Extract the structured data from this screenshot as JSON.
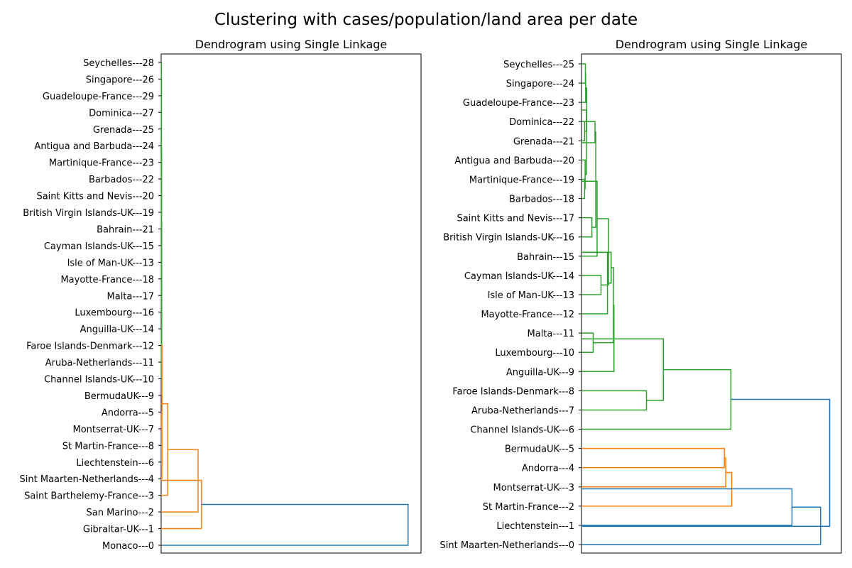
{
  "figure": {
    "suptitle": "Clustering with cases/population/land area per date"
  },
  "chart_data": [
    {
      "type": "dendrogram",
      "title": "Dendrogram using Single Linkage",
      "orientation": "right",
      "xlim": [
        0,
        1
      ],
      "leaves": [
        "Monaco---0",
        "Gibraltar-UK---1",
        "San Marino---2",
        "Saint Barthelemy-France---3",
        "Sint Maarten-Netherlands---4",
        "Liechtenstein---6",
        "St Martin-France---8",
        "Montserrat-UK---7",
        "Andorra---5",
        "BermudaUK---9",
        "Channel Islands-UK---10",
        "Aruba-Netherlands---11",
        "Faroe Islands-Denmark---12",
        "Anguilla-UK---14",
        "Luxembourg---16",
        "Malta---17",
        "Mayotte-France---18",
        "Isle of Man-UK---13",
        "Cayman Islands-UK---15",
        "Bahrain---21",
        "British Virgin Islands-UK---19",
        "Saint Kitts and Nevis---20",
        "Barbados---22",
        "Martinique-France---23",
        "Antigua and Barbuda---24",
        "Grenada---25",
        "Dominica---27",
        "Guadeloupe-France---29",
        "Singapore---26",
        "Seychelles---28"
      ],
      "links": [
        {
          "a": 23,
          "b": 24,
          "height": 0.0003,
          "color": "#2ca02c"
        },
        {
          "a": 24.5,
          "b": 22,
          "height": 0.0004,
          "color": "#2ca02c"
        },
        {
          "a": 23.75,
          "b": 25,
          "height": 0.0005,
          "color": "#2ca02c"
        },
        {
          "a": 24.375,
          "b": 26,
          "height": 0.0006,
          "color": "#2ca02c"
        },
        {
          "a": 25.1875,
          "b": 27,
          "height": 0.0007,
          "color": "#2ca02c"
        },
        {
          "a": 26.09,
          "b": 28,
          "height": 0.0008,
          "color": "#2ca02c"
        },
        {
          "a": 27.05,
          "b": 29,
          "height": 0.0009,
          "color": "#2ca02c"
        },
        {
          "a": 20,
          "b": 21,
          "height": 0.0005,
          "color": "#2ca02c"
        },
        {
          "a": 20.5,
          "b": 19,
          "height": 0.0007,
          "color": "#2ca02c"
        },
        {
          "a": 19.75,
          "b": 28.0,
          "height": 0.0012,
          "color": "#2ca02c"
        },
        {
          "a": 17,
          "b": 18,
          "height": 0.0006,
          "color": "#2ca02c"
        },
        {
          "a": 17.5,
          "b": 16,
          "height": 0.0008,
          "color": "#2ca02c"
        },
        {
          "a": 16.75,
          "b": 15,
          "height": 0.001,
          "color": "#2ca02c"
        },
        {
          "a": 15.875,
          "b": 14,
          "height": 0.0012,
          "color": "#2ca02c"
        },
        {
          "a": 14.9,
          "b": 23.9,
          "height": 0.0015,
          "color": "#2ca02c"
        },
        {
          "a": 12,
          "b": 13,
          "height": 0.001,
          "color": "#2ca02c"
        },
        {
          "a": 12.5,
          "b": 11,
          "height": 0.0012,
          "color": "#2ca02c"
        },
        {
          "a": 11.75,
          "b": 10,
          "height": 0.0014,
          "color": "#2ca02c"
        },
        {
          "a": 10.9,
          "b": 19.4,
          "height": 0.0018,
          "color": "#2ca02c"
        },
        {
          "a": 9,
          "b": 15.1,
          "height": 0.002,
          "color": "#2ca02c"
        },
        {
          "a": 7,
          "b": 8,
          "height": 0.0015,
          "color": "#ff7f0e"
        },
        {
          "a": 7.5,
          "b": 6,
          "height": 0.0018,
          "color": "#ff7f0e"
        },
        {
          "a": 6.75,
          "b": 5,
          "height": 0.002,
          "color": "#ff7f0e"
        },
        {
          "a": 5.9,
          "b": 4,
          "height": 0.0025,
          "color": "#ff7f0e"
        },
        {
          "a": 4.9,
          "b": 12.0,
          "height": 0.003,
          "color": "#ff7f0e"
        },
        {
          "a": 3,
          "b": 8.5,
          "height": 0.025,
          "color": "#ff7f0e"
        },
        {
          "a": 2,
          "b": 5.75,
          "height": 0.142,
          "color": "#ff7f0e"
        },
        {
          "a": 1,
          "b": 3.9,
          "height": 0.155,
          "color": "#ff7f0e"
        },
        {
          "a": 0,
          "b": 2.45,
          "height": 0.95,
          "color": "#1f77b4"
        }
      ]
    },
    {
      "type": "dendrogram",
      "title": "Dendrogram using Single Linkage",
      "orientation": "right",
      "xlim": [
        0,
        1
      ],
      "leaves": [
        "Sint Maarten-Netherlands---0",
        "Liechtenstein---1",
        "St Martin-France---2",
        "Montserrat-UK---3",
        "Andorra---4",
        "BermudaUK---5",
        "Channel Islands-UK---6",
        "Aruba-Netherlands---7",
        "Faroe Islands-Denmark---8",
        "Anguilla-UK---9",
        "Luxembourg---10",
        "Malta---11",
        "Mayotte-France---12",
        "Isle of Man-UK---13",
        "Cayman Islands-UK---14",
        "Bahrain---15",
        "British Virgin Islands-UK---16",
        "Saint Kitts and Nevis---17",
        "Barbados---18",
        "Martinique-France---19",
        "Antigua and Barbuda---20",
        "Grenada---21",
        "Dominica---22",
        "Guadeloupe-France---23",
        "Singapore---24",
        "Seychelles---25"
      ],
      "links": [
        {
          "a": 25,
          "b": 24,
          "height": 0.015,
          "color": "#2ca02c"
        },
        {
          "a": 23,
          "b": 24.5,
          "height": 0.016,
          "color": "#2ca02c"
        },
        {
          "a": 22,
          "b": 21,
          "height": 0.012,
          "color": "#2ca02c"
        },
        {
          "a": 23.75,
          "b": 21.5,
          "height": 0.02,
          "color": "#2ca02c"
        },
        {
          "a": 19,
          "b": 18,
          "height": 0.012,
          "color": "#2ca02c"
        },
        {
          "a": 20,
          "b": 18.5,
          "height": 0.014,
          "color": "#2ca02c"
        },
        {
          "a": 22.6,
          "b": 19.25,
          "height": 0.019,
          "color": "#2ca02c"
        },
        {
          "a": 20.9,
          "b": 22.0,
          "height": 0.052,
          "color": "#2ca02c"
        },
        {
          "a": 17,
          "b": 16,
          "height": 0.04,
          "color": "#2ca02c"
        },
        {
          "a": 16.5,
          "b": 21.45,
          "height": 0.055,
          "color": "#2ca02c"
        },
        {
          "a": 18.9,
          "b": 15,
          "height": 0.06,
          "color": "#2ca02c"
        },
        {
          "a": 14,
          "b": 13,
          "height": 0.075,
          "color": "#2ca02c"
        },
        {
          "a": 13.5,
          "b": 16.95,
          "height": 0.104,
          "color": "#2ca02c"
        },
        {
          "a": 15.2,
          "b": 12,
          "height": 0.1,
          "color": "#2ca02c"
        },
        {
          "a": 13.6,
          "b": 15.2,
          "height": 0.114,
          "color": "#2ca02c"
        },
        {
          "a": 11,
          "b": 10,
          "height": 0.045,
          "color": "#2ca02c"
        },
        {
          "a": 10.5,
          "b": 14.4,
          "height": 0.123,
          "color": "#2ca02c"
        },
        {
          "a": 12.45,
          "b": 9,
          "height": 0.125,
          "color": "#2ca02c"
        },
        {
          "a": 8,
          "b": 7,
          "height": 0.25,
          "color": "#2ca02c"
        },
        {
          "a": 10.7,
          "b": 7.5,
          "height": 0.315,
          "color": "#2ca02c"
        },
        {
          "a": 9.1,
          "b": 6,
          "height": 0.575,
          "color": "#2ca02c"
        },
        {
          "a": 5,
          "b": 4,
          "height": 0.55,
          "color": "#ff7f0e"
        },
        {
          "a": 4.5,
          "b": 3,
          "height": 0.555,
          "color": "#ff7f0e"
        },
        {
          "a": 3.75,
          "b": 2,
          "height": 0.578,
          "color": "#ff7f0e"
        },
        {
          "a": 2.9,
          "b": 1,
          "height": 0.81,
          "color": "#1f77b4"
        },
        {
          "a": 1.95,
          "b": 0,
          "height": 0.92,
          "color": "#1f77b4"
        },
        {
          "a": 7.55,
          "b": 0.95,
          "height": 0.955,
          "color": "#1f77b4"
        }
      ]
    }
  ]
}
